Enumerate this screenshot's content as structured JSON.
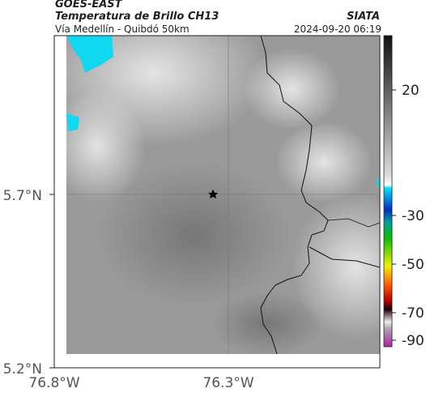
{
  "header": {
    "satellite": "GOES-EAST",
    "product": "Temperatura de Brillo CH13",
    "route": "Vía Medellín - Quibdó 50km",
    "source": "SIATA",
    "datetime": "2024-09-20 06:19"
  },
  "map": {
    "lat_ticks": [
      "5.7°N",
      "5.2°N"
    ],
    "lon_ticks": [
      "76.8°W",
      "76.3°W"
    ]
  },
  "colorbar": {
    "ticks": [
      "20",
      "-30",
      "-50",
      "-70",
      "-90"
    ]
  }
}
